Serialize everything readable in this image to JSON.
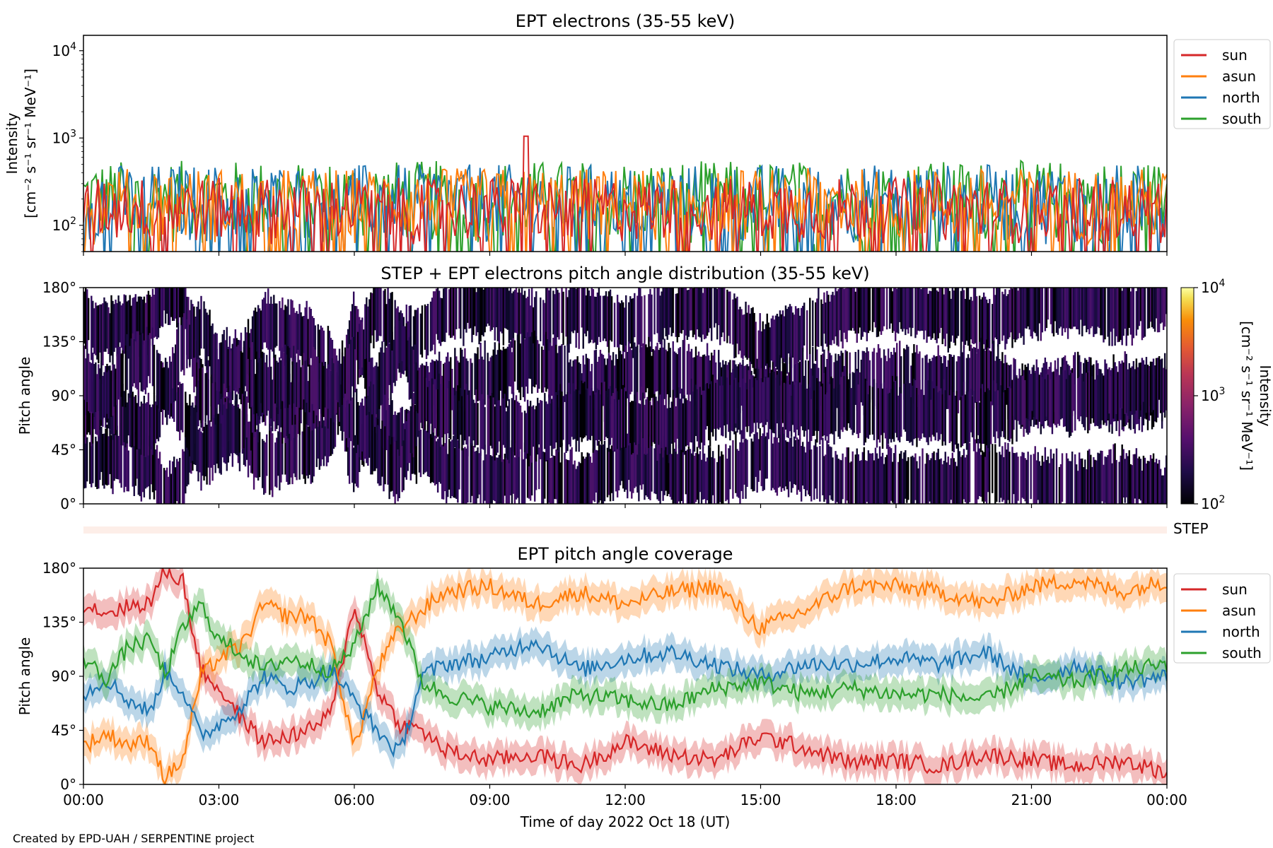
{
  "credit": "Created by EPD-UAH / SERPENTINE project",
  "chart_data": [
    {
      "type": "line",
      "title": "EPT electrons (35-55 keV)",
      "ylabel_line1": "Intensity",
      "ylabel_line2": "[cm⁻² s⁻¹ sr⁻¹ MeV⁻¹]",
      "yscale": "log",
      "ylim": [
        50,
        15000
      ],
      "yticks": [
        {
          "value": 100,
          "base": "10",
          "exp": "2"
        },
        {
          "value": 1000,
          "base": "10",
          "exp": "3"
        },
        {
          "value": 10000,
          "base": "10",
          "exp": "4"
        }
      ],
      "xlim_hours": [
        0,
        24
      ],
      "legend_position": "outside-right",
      "series": [
        {
          "name": "sun",
          "color": "#d62728",
          "typical_range": [
            60,
            350
          ],
          "peak": {
            "hour": 9.8,
            "value": 1050
          }
        },
        {
          "name": "asun",
          "color": "#ff7f0e",
          "typical_range": [
            60,
            450
          ]
        },
        {
          "name": "north",
          "color": "#1f77b4",
          "typical_range": [
            60,
            500
          ]
        },
        {
          "name": "south",
          "color": "#2ca02c",
          "typical_range": [
            60,
            550
          ]
        }
      ]
    },
    {
      "type": "heatmap",
      "title": "STEP + EPT electrons pitch angle distribution (35-55 keV)",
      "ylabel": "Pitch angle",
      "ylim": [
        0,
        180
      ],
      "yticks": [
        "0°",
        "45°",
        "90°",
        "135°",
        "180°"
      ],
      "xlim_hours": [
        0,
        24
      ],
      "colormap": "inferno",
      "colorbar": {
        "label_line1": "Intensity",
        "label_line2": "[cm⁻² s⁻¹ sr⁻¹ MeV⁻¹]",
        "range": [
          100,
          10000
        ],
        "ticks": [
          {
            "base": "10",
            "exp": "2"
          },
          {
            "base": "10",
            "exp": "3"
          },
          {
            "base": "10",
            "exp": "4"
          }
        ]
      },
      "typical_intensity": 200
    },
    {
      "type": "bar",
      "label": "STEP",
      "color": "#fdeee8"
    },
    {
      "type": "line",
      "title": "EPT pitch angle coverage",
      "ylabel": "Pitch angle",
      "ylim": [
        0,
        180
      ],
      "yticks": [
        "0°",
        "45°",
        "90°",
        "135°",
        "180°"
      ],
      "xlabel": "Time of day 2022 Oct 18 (UT)",
      "xticks": [
        "00:00",
        "03:00",
        "06:00",
        "09:00",
        "12:00",
        "15:00",
        "18:00",
        "21:00",
        "00:00"
      ],
      "xlim_hours": [
        0,
        24
      ],
      "legend_position": "outside-right",
      "series": [
        {
          "name": "sun",
          "color": "#d62728",
          "hours": [
            0,
            0.5,
            1,
            1.5,
            1.8,
            2.2,
            2.6,
            3,
            3.5,
            4,
            4.5,
            5,
            5.5,
            6,
            6.5,
            7,
            7.5,
            8,
            9,
            10,
            11,
            12,
            13,
            14,
            15,
            16,
            17,
            18,
            19,
            20,
            21,
            22,
            23,
            24
          ],
          "values": [
            150,
            143,
            148,
            152,
            178,
            170,
            95,
            80,
            55,
            35,
            40,
            45,
            60,
            150,
            80,
            50,
            45,
            28,
            20,
            25,
            15,
            35,
            25,
            20,
            40,
            30,
            18,
            20,
            15,
            25,
            20,
            15,
            20,
            10
          ]
        },
        {
          "name": "asun",
          "color": "#ff7f0e",
          "hours": [
            0,
            0.5,
            1,
            1.5,
            1.8,
            2.2,
            2.6,
            3,
            3.5,
            4,
            4.5,
            5,
            5.5,
            6,
            6.5,
            7,
            7.5,
            8,
            9,
            10,
            11,
            12,
            13,
            14,
            15,
            16,
            17,
            18,
            19,
            20,
            21,
            22,
            23,
            24
          ],
          "values": [
            32,
            42,
            33,
            36,
            5,
            20,
            90,
            105,
            115,
            150,
            140,
            140,
            115,
            30,
            95,
            130,
            145,
            160,
            165,
            150,
            160,
            150,
            160,
            165,
            130,
            145,
            165,
            165,
            160,
            150,
            165,
            170,
            160,
            170
          ]
        },
        {
          "name": "north",
          "color": "#1f77b4",
          "hours": [
            0,
            0.5,
            1,
            1.5,
            1.8,
            2.2,
            2.6,
            3,
            3.5,
            4,
            4.5,
            5,
            5.5,
            6,
            6.5,
            7,
            7.5,
            8,
            9,
            10,
            11,
            12,
            13,
            14,
            15,
            16,
            17,
            18,
            19,
            20,
            21,
            22,
            23,
            24
          ],
          "values": [
            75,
            88,
            70,
            60,
            95,
            78,
            40,
            50,
            65,
            90,
            80,
            85,
            95,
            70,
            45,
            25,
            90,
            100,
            105,
            120,
            95,
            105,
            110,
            100,
            90,
            100,
            100,
            105,
            100,
            110,
            85,
            100,
            85,
            90
          ]
        },
        {
          "name": "south",
          "color": "#2ca02c",
          "hours": [
            0,
            0.5,
            1,
            1.5,
            1.8,
            2.2,
            2.6,
            3,
            3.5,
            4,
            4.5,
            5,
            5.5,
            6,
            6.5,
            7,
            7.5,
            8,
            9,
            10,
            11,
            12,
            13,
            14,
            15,
            16,
            17,
            18,
            19,
            20,
            21,
            22,
            23,
            24
          ],
          "values": [
            105,
            88,
            115,
            120,
            90,
            130,
            150,
            120,
            110,
            95,
            105,
            100,
            95,
            115,
            165,
            140,
            85,
            75,
            65,
            60,
            75,
            70,
            65,
            80,
            85,
            75,
            80,
            75,
            75,
            70,
            90,
            85,
            95,
            100
          ]
        }
      ],
      "band_halfwidth": 12
    }
  ]
}
